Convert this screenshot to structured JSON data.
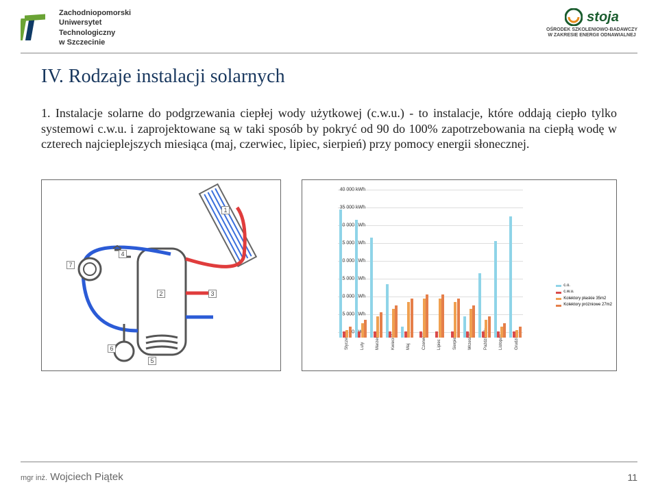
{
  "header": {
    "uni_line1": "Zachodniopomorski",
    "uni_line2": "Uniwersytet",
    "uni_line3": "Technologiczny",
    "uni_line4": "w Szczecinie",
    "ostoja_name": "stoja",
    "ostoja_sub1": "OŚRODEK SZKOLENIOWO-BADAWCZY",
    "ostoja_sub2": "W ZAKRESIE ENERGII ODNAWIALNEJ"
  },
  "title": "IV.  Rodzaje instalacji solarnych",
  "body": "1. Instalacje solarne do podgrzewania ciepłej wody użytkowej (c.w.u.) - to instalacje, które oddają ciepło tylko systemowi c.w.u. i zaprojektowane są w taki sposób by pokryć od 90 do 100% zapotrzebowania na ciepłą wodę w czterech najcieplejszych miesiąca (maj, czerwiec, lipiec, sierpień) przy pomocy energii słonecznej.",
  "schematic_labels": [
    "1",
    "2",
    "3",
    "4",
    "5",
    "6",
    "7"
  ],
  "chart": {
    "ymax": 40000,
    "ytick_step": 5000,
    "y_unit": "kWh",
    "y_ticks": [
      {
        "v": 40000,
        "label": "40 000 kWh"
      },
      {
        "v": 35000,
        "label": "35 000 kWh"
      },
      {
        "v": 30000,
        "label": "30 000 kWh"
      },
      {
        "v": 25000,
        "label": "25 000 kWh"
      },
      {
        "v": 20000,
        "label": "20 000 kWh"
      },
      {
        "v": 15000,
        "label": "15 000 kWh"
      },
      {
        "v": 10000,
        "label": "10 000 kWh"
      },
      {
        "v": 5000,
        "label": "5 000 kWh"
      },
      {
        "v": 0,
        "label": "0 kWh"
      }
    ],
    "months": [
      "Styczeń",
      "Luty",
      "Marzec",
      "Kwiecień",
      "Maj",
      "Czerwiec",
      "Lipiec",
      "Sierpień",
      "Wrzesień",
      "Październik",
      "Listopad",
      "Grudzień"
    ],
    "series": {
      "co": {
        "label": "c.o.",
        "color": "#8fd4e8",
        "values": [
          36000,
          33000,
          28000,
          15000,
          3000,
          0,
          0,
          0,
          6000,
          18000,
          27000,
          34000
        ]
      },
      "cwu": {
        "label": "c.w.u.",
        "color": "#d94a4a",
        "values": [
          1600,
          1600,
          1600,
          1600,
          1600,
          1600,
          1600,
          1600,
          1600,
          1600,
          1600,
          1600
        ]
      },
      "flat": {
        "label": "Kolektory płaskie 35m2",
        "color": "#f0a050",
        "values": [
          2000,
          4000,
          6000,
          8000,
          10000,
          11000,
          11000,
          10000,
          8000,
          5000,
          3000,
          2000
        ]
      },
      "vac": {
        "label": "Kolektory próżniowe 27m2",
        "color": "#e57f4a",
        "values": [
          3000,
          5000,
          7000,
          9000,
          11000,
          12000,
          12000,
          11000,
          9000,
          6000,
          4000,
          3000
        ]
      }
    }
  },
  "footer": {
    "author_prefix": "mgr inż.",
    "author_name": "Wojciech Piątek",
    "page": "11"
  },
  "colors": {
    "title": "#17365d",
    "pipe_hot": "#e03c3c",
    "pipe_cold": "#2b5bd6",
    "uni_green": "#6aa335",
    "uni_navy": "#0f3a66"
  }
}
